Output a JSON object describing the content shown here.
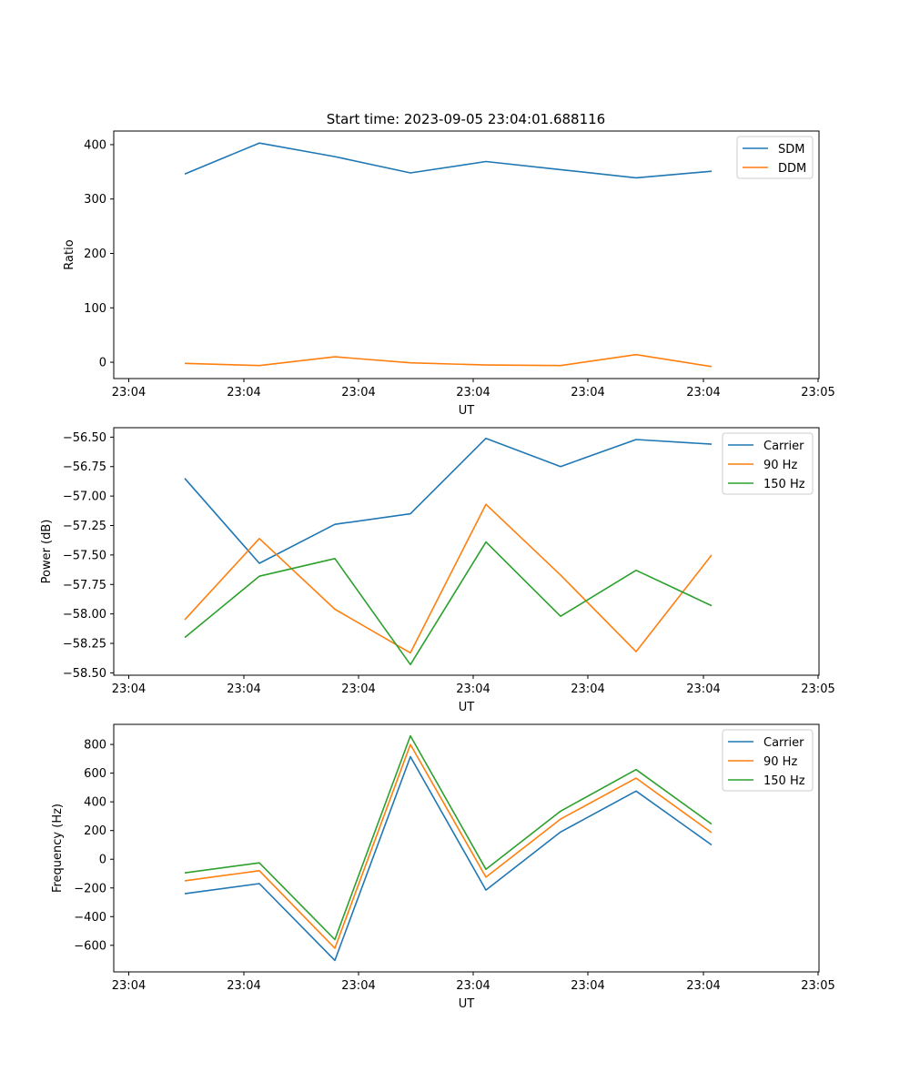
{
  "figure": {
    "title": "Start time: 2023-09-05 23:04:01.688116"
  },
  "chart_data": [
    {
      "type": "line",
      "title": "Start time: 2023-09-05 23:04:01.688116",
      "xlabel": "UT",
      "ylabel": "Ratio",
      "x_tick_labels": [
        "23:04",
        "23:04",
        "23:04",
        "23:04",
        "23:04",
        "23:04",
        "23:04",
        "23:05"
      ],
      "y_ticks": [
        0,
        100,
        200,
        300,
        400
      ],
      "y_tick_labels": [
        "0",
        "100",
        "200",
        "300",
        "400"
      ],
      "ylim": [
        -30,
        425
      ],
      "legend_position": "top-right",
      "grid": false,
      "series": [
        {
          "name": "SDM",
          "color": "#1f77b4",
          "values": [
            346,
            403,
            378,
            348,
            369,
            354,
            339,
            351
          ]
        },
        {
          "name": "DDM",
          "color": "#ff7f0e",
          "values": [
            -2,
            -6,
            10,
            -1,
            -5,
            -6,
            14,
            -8
          ]
        }
      ]
    },
    {
      "type": "line",
      "title": "",
      "xlabel": "UT",
      "ylabel": "Power (dB)",
      "x_tick_labels": [
        "23:04",
        "23:04",
        "23:04",
        "23:04",
        "23:04",
        "23:04",
        "23:04",
        "23:05"
      ],
      "y_ticks": [
        -58.5,
        -58.25,
        -58.0,
        -57.75,
        -57.5,
        -57.25,
        -57.0,
        -56.75,
        -56.5
      ],
      "y_tick_labels": [
        "−58.50",
        "−58.25",
        "−58.00",
        "−57.75",
        "−57.50",
        "−57.25",
        "−57.00",
        "−56.75",
        "−56.50"
      ],
      "ylim": [
        -58.52,
        -56.42
      ],
      "legend_position": "top-right",
      "grid": false,
      "series": [
        {
          "name": "Carrier",
          "color": "#1f77b4",
          "values": [
            -56.85,
            -57.57,
            -57.24,
            -57.15,
            -56.51,
            -56.75,
            -56.52,
            -56.56
          ]
        },
        {
          "name": "90 Hz",
          "color": "#ff7f0e",
          "values": [
            -58.05,
            -57.36,
            -57.96,
            -58.33,
            -57.07,
            -57.67,
            -58.32,
            -57.5
          ]
        },
        {
          "name": "150 Hz",
          "color": "#2ca02c",
          "values": [
            -58.2,
            -57.68,
            -57.53,
            -58.43,
            -57.39,
            -58.02,
            -57.63,
            -57.93
          ]
        }
      ]
    },
    {
      "type": "line",
      "title": "",
      "xlabel": "UT",
      "ylabel": "Frequency (Hz)",
      "x_tick_labels": [
        "23:04",
        "23:04",
        "23:04",
        "23:04",
        "23:04",
        "23:04",
        "23:04",
        "23:05"
      ],
      "y_ticks": [
        -600,
        -400,
        -200,
        0,
        200,
        400,
        600,
        800
      ],
      "y_tick_labels": [
        "−600",
        "−400",
        "−200",
        "0",
        "200",
        "400",
        "600",
        "800"
      ],
      "ylim": [
        -785,
        940
      ],
      "legend_position": "top-right",
      "grid": false,
      "series": [
        {
          "name": "Carrier",
          "color": "#1f77b4",
          "values": [
            -240,
            -170,
            -705,
            715,
            -215,
            190,
            475,
            100
          ]
        },
        {
          "name": "90 Hz",
          "color": "#ff7f0e",
          "values": [
            -150,
            -80,
            -620,
            800,
            -125,
            280,
            565,
            185
          ]
        },
        {
          "name": "150 Hz",
          "color": "#2ca02c",
          "values": [
            -95,
            -25,
            -560,
            860,
            -70,
            335,
            625,
            245
          ]
        }
      ]
    }
  ]
}
